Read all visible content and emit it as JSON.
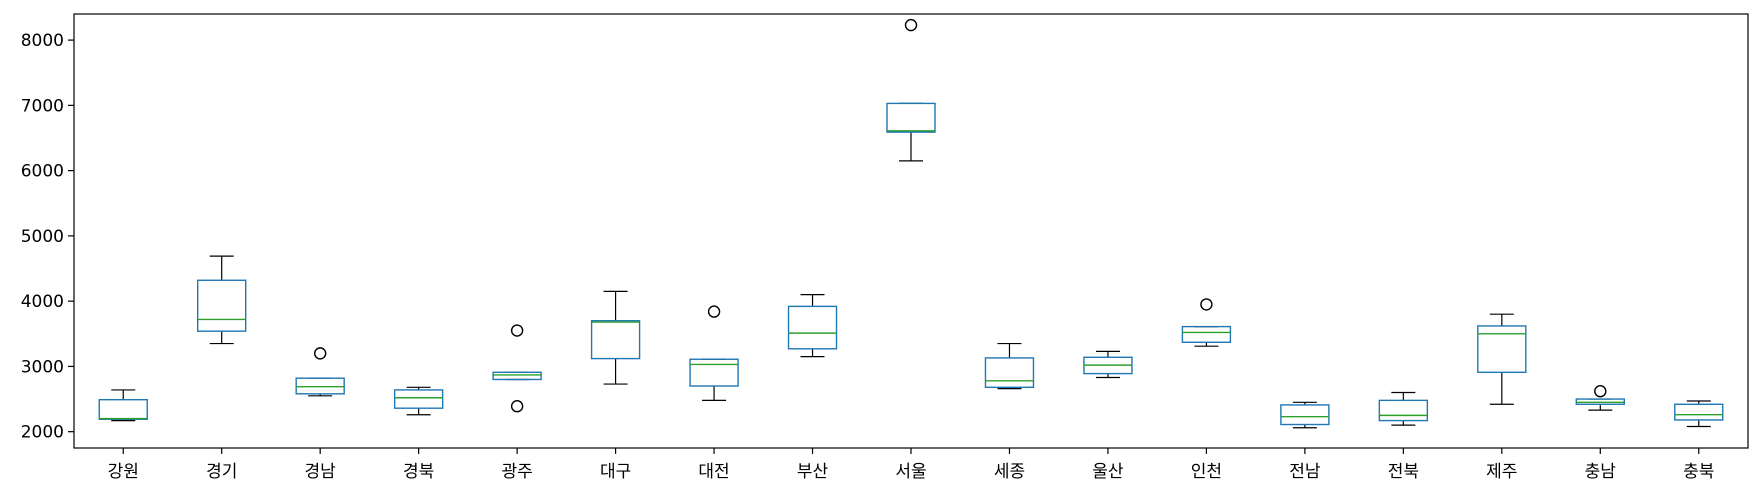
{
  "chart_data": {
    "type": "box",
    "title": "",
    "xlabel": "",
    "ylabel": "",
    "ylim": [
      1750,
      8400
    ],
    "yticks": [
      2000,
      3000,
      4000,
      5000,
      6000,
      7000,
      8000
    ],
    "grid": false,
    "legend": "none",
    "colors": {
      "box": "#1f77b4",
      "median": "#2ca02c",
      "whisker": "#000000",
      "flier": "#000000"
    },
    "categories": [
      "강원",
      "경기",
      "경남",
      "경북",
      "광주",
      "대구",
      "대전",
      "부산",
      "서울",
      "세종",
      "울산",
      "인천",
      "전남",
      "전북",
      "제주",
      "충남",
      "충북"
    ],
    "boxes": [
      {
        "label": "강원",
        "whislo": 2170,
        "q1": 2190,
        "med": 2200,
        "q3": 2490,
        "whishi": 2640,
        "fliers": []
      },
      {
        "label": "경기",
        "whislo": 3350,
        "q1": 3540,
        "med": 3720,
        "q3": 4320,
        "whishi": 4690,
        "fliers": []
      },
      {
        "label": "경남",
        "whislo": 2550,
        "q1": 2580,
        "med": 2690,
        "q3": 2820,
        "whishi": 2820,
        "fliers": [
          3200
        ]
      },
      {
        "label": "경북",
        "whislo": 2260,
        "q1": 2360,
        "med": 2520,
        "q3": 2640,
        "whishi": 2680,
        "fliers": []
      },
      {
        "label": "광주",
        "whislo": 2800,
        "q1": 2800,
        "med": 2870,
        "q3": 2910,
        "whishi": 2910,
        "fliers": [
          3550,
          2390
        ]
      },
      {
        "label": "대구",
        "whislo": 2730,
        "q1": 3120,
        "med": 3680,
        "q3": 3700,
        "whishi": 4150,
        "fliers": []
      },
      {
        "label": "대전",
        "whislo": 2480,
        "q1": 2700,
        "med": 3030,
        "q3": 3110,
        "whishi": 3110,
        "fliers": [
          3840
        ]
      },
      {
        "label": "부산",
        "whislo": 3150,
        "q1": 3270,
        "med": 3510,
        "q3": 3920,
        "whishi": 4100,
        "fliers": []
      },
      {
        "label": "서울",
        "whislo": 6150,
        "q1": 6590,
        "med": 6610,
        "q3": 7030,
        "whishi": 7030,
        "fliers": [
          8230
        ]
      },
      {
        "label": "세종",
        "whislo": 2660,
        "q1": 2680,
        "med": 2780,
        "q3": 3130,
        "whishi": 3350,
        "fliers": []
      },
      {
        "label": "울산",
        "whislo": 2830,
        "q1": 2890,
        "med": 3020,
        "q3": 3140,
        "whishi": 3230,
        "fliers": []
      },
      {
        "label": "인천",
        "whislo": 3310,
        "q1": 3370,
        "med": 3520,
        "q3": 3610,
        "whishi": 3610,
        "fliers": [
          3950
        ]
      },
      {
        "label": "전남",
        "whislo": 2060,
        "q1": 2110,
        "med": 2230,
        "q3": 2410,
        "whishi": 2450,
        "fliers": []
      },
      {
        "label": "전북",
        "whislo": 2100,
        "q1": 2170,
        "med": 2250,
        "q3": 2480,
        "whishi": 2600,
        "fliers": []
      },
      {
        "label": "제주",
        "whislo": 2420,
        "q1": 2910,
        "med": 3500,
        "q3": 3620,
        "whishi": 3800,
        "fliers": []
      },
      {
        "label": "충남",
        "whislo": 2330,
        "q1": 2420,
        "med": 2450,
        "q3": 2500,
        "whishi": 2500,
        "fliers": [
          2620
        ]
      },
      {
        "label": "충북",
        "whislo": 2080,
        "q1": 2180,
        "med": 2260,
        "q3": 2420,
        "whishi": 2470,
        "fliers": []
      }
    ]
  }
}
